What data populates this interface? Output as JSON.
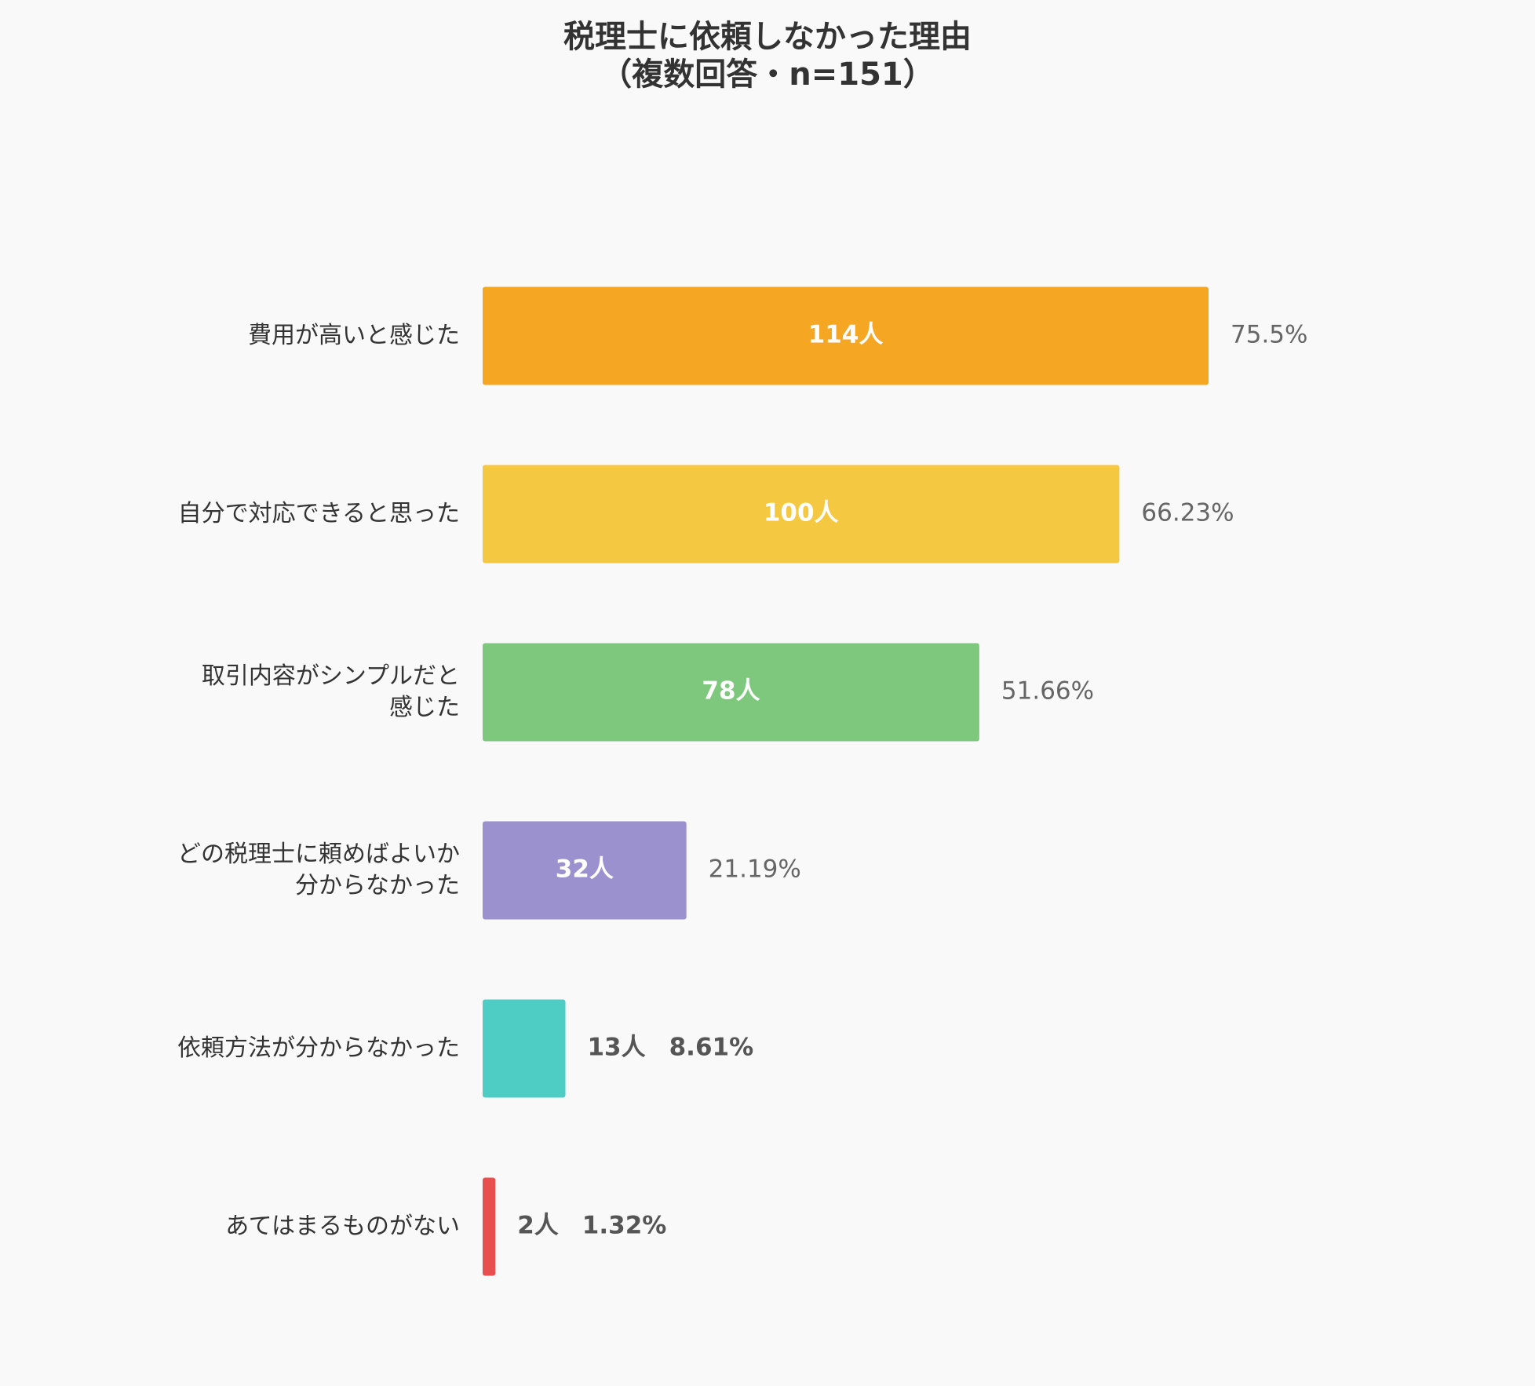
{
  "chart_data": {
    "type": "bar",
    "orientation": "horizontal",
    "title": "税理士に依頼しなかった理由",
    "subtitle": "（複数回答・n=151）",
    "categories": [
      "費用が高いと感じた",
      "自分で対応できると思った",
      "取引内容がシンプルだと\n感じた",
      "どの税理士に頼めばよいか\n分からなかった",
      "依頼方法が分からなかった",
      "あてはまるものがない"
    ],
    "values": [
      114,
      100,
      78,
      32,
      13,
      2
    ],
    "value_labels": [
      "114人",
      "100人",
      "78人",
      "32人",
      "13人",
      "2人"
    ],
    "percents": [
      75.5,
      66.23,
      51.66,
      21.19,
      8.61,
      1.32
    ],
    "percent_labels": [
      "75.5%",
      "66.23%",
      "51.66%",
      "21.19%",
      "8.61%",
      "1.32%"
    ],
    "colors": [
      "#f5a623",
      "#f5c842",
      "#7ec87e",
      "#9b91cf",
      "#4ecdc4",
      "#e8504f"
    ]
  }
}
